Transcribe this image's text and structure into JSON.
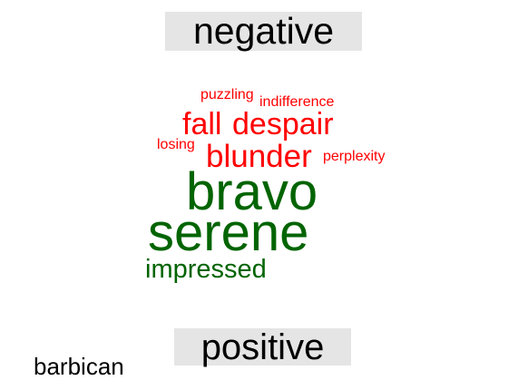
{
  "labels": {
    "negative": "negative",
    "positive": "positive"
  },
  "colors": {
    "negative": "#ff0000",
    "positive": "#006400",
    "label_background": "#e5e5e5"
  },
  "words": {
    "puzzling": "puzzling",
    "indifference": "indifference",
    "fall": "fall",
    "despair": "despair",
    "losing": "losing",
    "blunder": "blunder",
    "perplexity": "perplexity",
    "bravo": "bravo",
    "serene": "serene",
    "impressed": "impressed",
    "barbican": "barbican"
  }
}
